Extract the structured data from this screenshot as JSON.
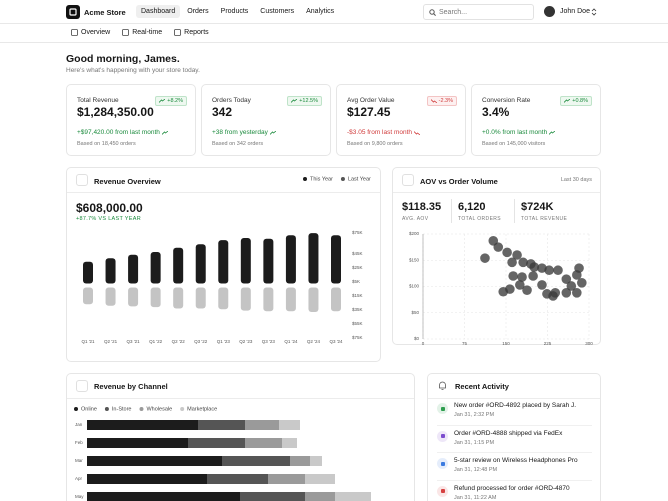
{
  "nav": {
    "brand": "Acme Store",
    "links": [
      "Dashboard",
      "Orders",
      "Products",
      "Customers",
      "Analytics"
    ],
    "search": "Search...",
    "user": "John Doe"
  },
  "tabs": [
    "Overview",
    "Real-time",
    "Reports"
  ],
  "greeting": {
    "title": "Good morning, James.",
    "subtitle": "Here's what's happening with your store today."
  },
  "kpis": [
    {
      "label": "Total Revenue",
      "change": "+8.2%",
      "trend": "up",
      "value": "$1,284,350.00",
      "delta": "+$97,420.00 from last month",
      "note": "Based on 18,450 orders"
    },
    {
      "label": "Orders Today",
      "change": "+12.5%",
      "trend": "up",
      "value": "342",
      "delta": "+38 from yesterday",
      "note": "Based on 342 orders"
    },
    {
      "label": "Avg Order Value",
      "change": "-2.3%",
      "trend": "down",
      "value": "$127.45",
      "delta": "-$3.05 from last month",
      "note": "Based on 9,800 orders"
    },
    {
      "label": "Conversion Rate",
      "change": "+0.8%",
      "trend": "up",
      "value": "3.4%",
      "delta": "+0.0% from last month",
      "note": "Based on 145,000 visitors"
    }
  ],
  "chart_data": [
    {
      "type": "bar",
      "title": "Revenue Overview",
      "value": "$608,000.00",
      "subtitle": "+87.7% VS LAST YEAR",
      "categories": [
        "Q1 '21",
        "Q2 '21",
        "Q3 '21",
        "Q1 '22",
        "Q2 '22",
        "Q3 '22",
        "Q1 '23",
        "Q2 '23",
        "Q3 '23",
        "Q1 '24",
        "Q2 '24",
        "Q3 '24"
      ],
      "series": [
        {
          "name": "This Year",
          "color": "#1c1c1c",
          "values": [
            31000,
            36000,
            41000,
            45000,
            51000,
            56000,
            62000,
            65000,
            64000,
            69000,
            72000,
            69000
          ]
        },
        {
          "name": "Last Year",
          "color": "#c4c4c4",
          "direction": "down",
          "values": [
            24000,
            26000,
            27000,
            28000,
            30000,
            30000,
            31000,
            33000,
            34000,
            34000,
            35000,
            34000
          ]
        }
      ],
      "ylim": [
        -75000,
        75000
      ],
      "yticks": [
        {
          "value": 75000,
          "label": "$75K"
        },
        {
          "value": 45000,
          "label": "$45K"
        },
        {
          "value": 25000,
          "label": "$25K"
        },
        {
          "value": 5000,
          "label": "$5K"
        },
        {
          "value": -15000,
          "label": "$15K"
        },
        {
          "value": -35000,
          "label": "$35K"
        },
        {
          "value": -55000,
          "label": "$55K"
        },
        {
          "value": -75000,
          "label": "$75K"
        }
      ],
      "grid": false,
      "legend": "top-right"
    },
    {
      "type": "scatter",
      "title": "AOV vs Order Volume",
      "period": "Last 30 days",
      "stats": [
        {
          "value": "$118.35",
          "label": "AVG. AOV"
        },
        {
          "value": "6,120",
          "label": "TOTAL ORDERS"
        },
        {
          "value": "$724K",
          "label": "TOTAL REVENUE"
        }
      ],
      "x": [
        127,
        136,
        112,
        152,
        170,
        181,
        161,
        195,
        201,
        215,
        228,
        244,
        163,
        179,
        199,
        175,
        157,
        145,
        188,
        215,
        224,
        239,
        259,
        278,
        287,
        268,
        278,
        259,
        235,
        282
      ],
      "values": [
        187,
        175,
        154,
        165,
        160,
        146,
        146,
        143,
        137,
        135,
        131,
        131,
        120,
        118,
        120,
        103,
        95,
        90,
        93,
        103,
        86,
        88,
        114,
        122,
        107,
        101,
        88,
        88,
        82,
        135
      ],
      "color": "#3a3a3a",
      "xlim": [
        0,
        300
      ],
      "xticks": [
        0,
        75,
        150,
        225,
        300
      ],
      "ylim": [
        0,
        200
      ],
      "yticks": [
        {
          "value": 0,
          "label": "$0"
        },
        {
          "value": 50,
          "label": "$50"
        },
        {
          "value": 100,
          "label": "$100"
        },
        {
          "value": 150,
          "label": "$150"
        },
        {
          "value": 200,
          "label": "$200"
        }
      ],
      "grid": true
    },
    {
      "type": "bar",
      "orientation": "horizontal",
      "stacked": true,
      "title": "Revenue by Channel",
      "categories": [
        "Jan",
        "Feb",
        "Mar",
        "Apr",
        "May"
      ],
      "series": [
        {
          "name": "Online",
          "color": "#1c1c1c",
          "values": [
            111,
            101,
            135,
            120,
            153
          ]
        },
        {
          "name": "In-Store",
          "color": "#555555",
          "values": [
            47,
            57,
            68,
            61,
            65
          ]
        },
        {
          "name": "Wholesale",
          "color": "#9a9a9a",
          "values": [
            34,
            37,
            20,
            37,
            30
          ]
        },
        {
          "name": "Marketplace",
          "color": "#c9c9c9",
          "values": [
            21,
            15,
            12,
            30,
            36
          ]
        }
      ],
      "legend": "top-left"
    }
  ],
  "activity": {
    "title": "Recent Activity",
    "items": [
      {
        "text": "New order #ORD-4892 placed by Sarah J.",
        "time": "Jan 31, 2:32 PM",
        "color": "#2e9e4f"
      },
      {
        "text": "Order #ORD-4888 shipped via FedEx",
        "time": "Jan 31, 1:15 PM",
        "color": "#7c4dce"
      },
      {
        "text": "5-star review on Wireless Headphones Pro",
        "time": "Jan 31, 12:48 PM",
        "color": "#3b7be0"
      },
      {
        "text": "Refund processed for order #ORD-4870",
        "time": "Jan 31, 11:22 AM",
        "color": "#d64040"
      }
    ]
  }
}
